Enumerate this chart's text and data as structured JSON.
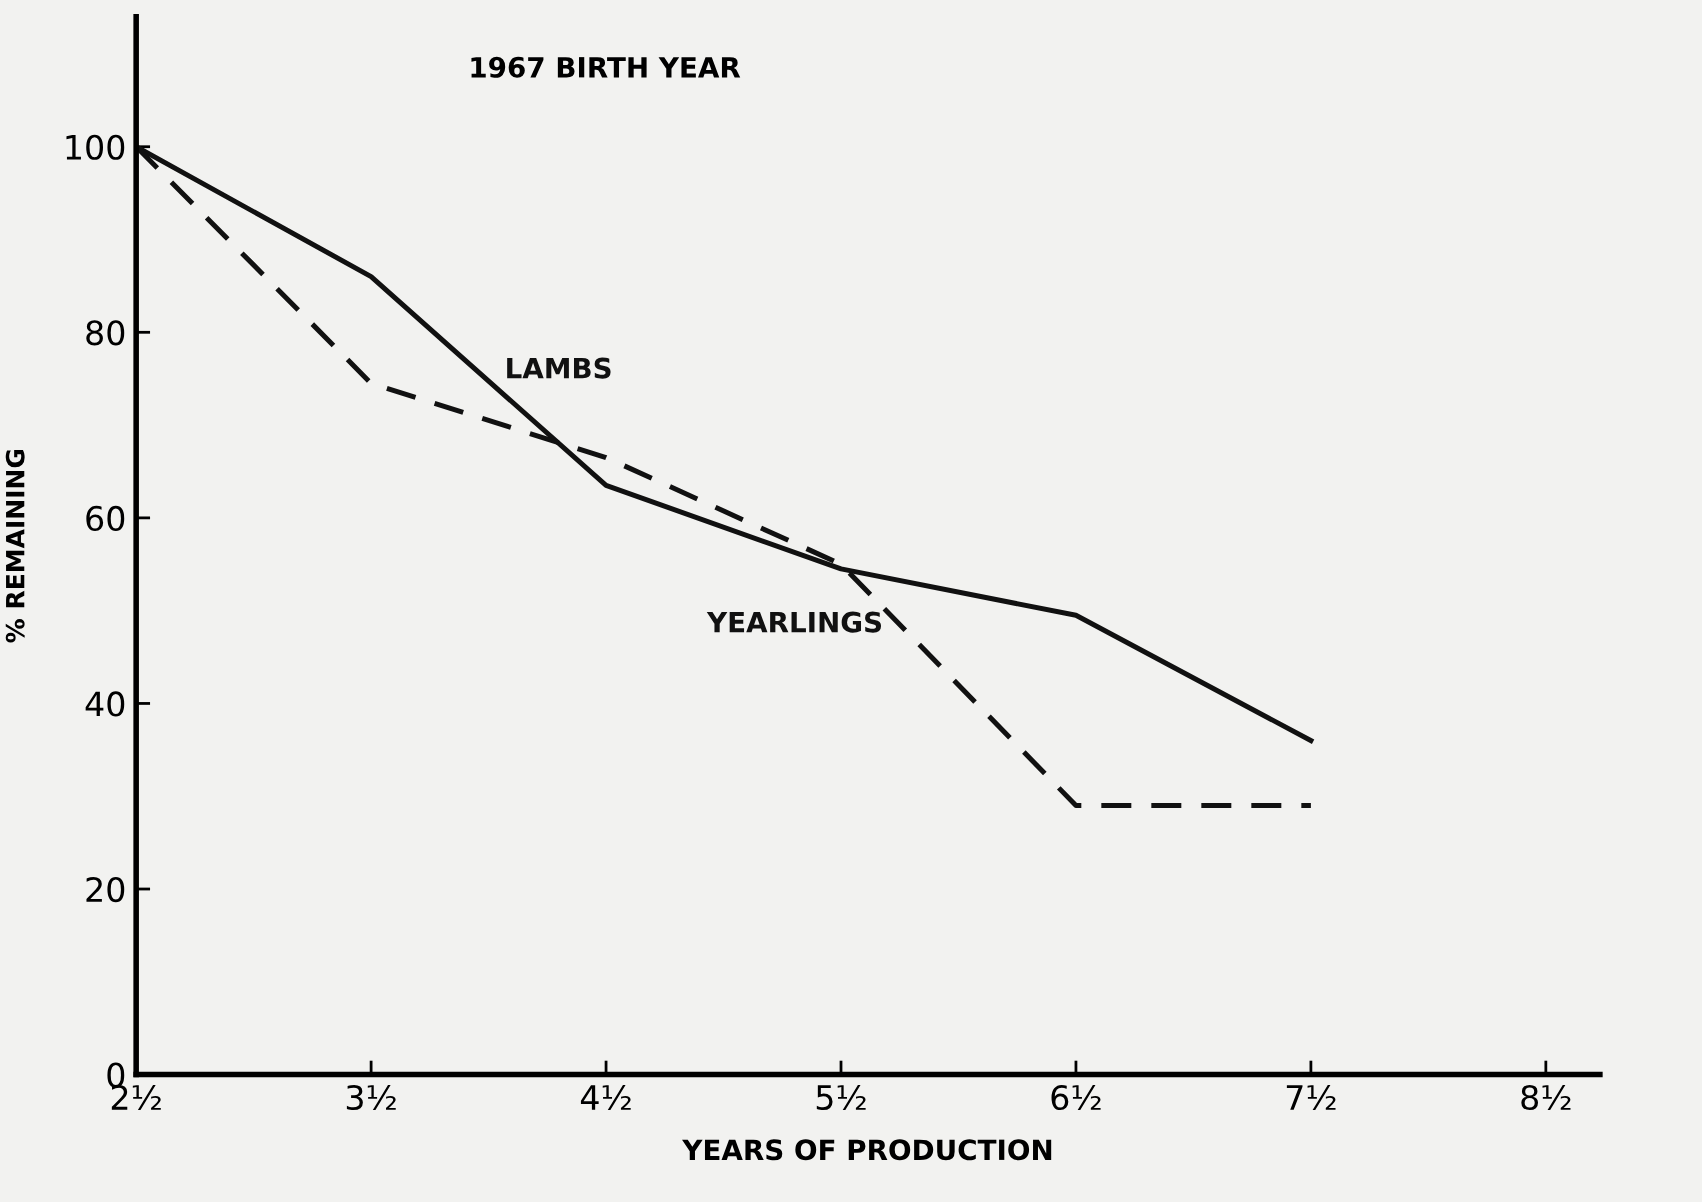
{
  "chart_data": {
    "type": "line",
    "title": "1967 BIRTH YEAR",
    "xlabel": "YEARS OF PRODUCTION",
    "ylabel": "% REMAINING",
    "categories": [
      "2½",
      "3½",
      "4½",
      "5½",
      "6½",
      "7½",
      "8½"
    ],
    "series": [
      {
        "name": "LAMBS",
        "color": "#111111",
        "line_style": "solid",
        "values": [
          100,
          86,
          63.5,
          54.5,
          49.5,
          36,
          null
        ]
      },
      {
        "name": "YEARLINGS",
        "color": "#111111",
        "line_style": "dashed",
        "values": [
          100,
          74.5,
          66.5,
          55,
          29,
          29,
          null
        ]
      }
    ],
    "ylim": [
      0,
      114
    ],
    "yticks": [
      0,
      20,
      40,
      60,
      80,
      100
    ],
    "grid": false,
    "legend": false,
    "marker": "none"
  }
}
